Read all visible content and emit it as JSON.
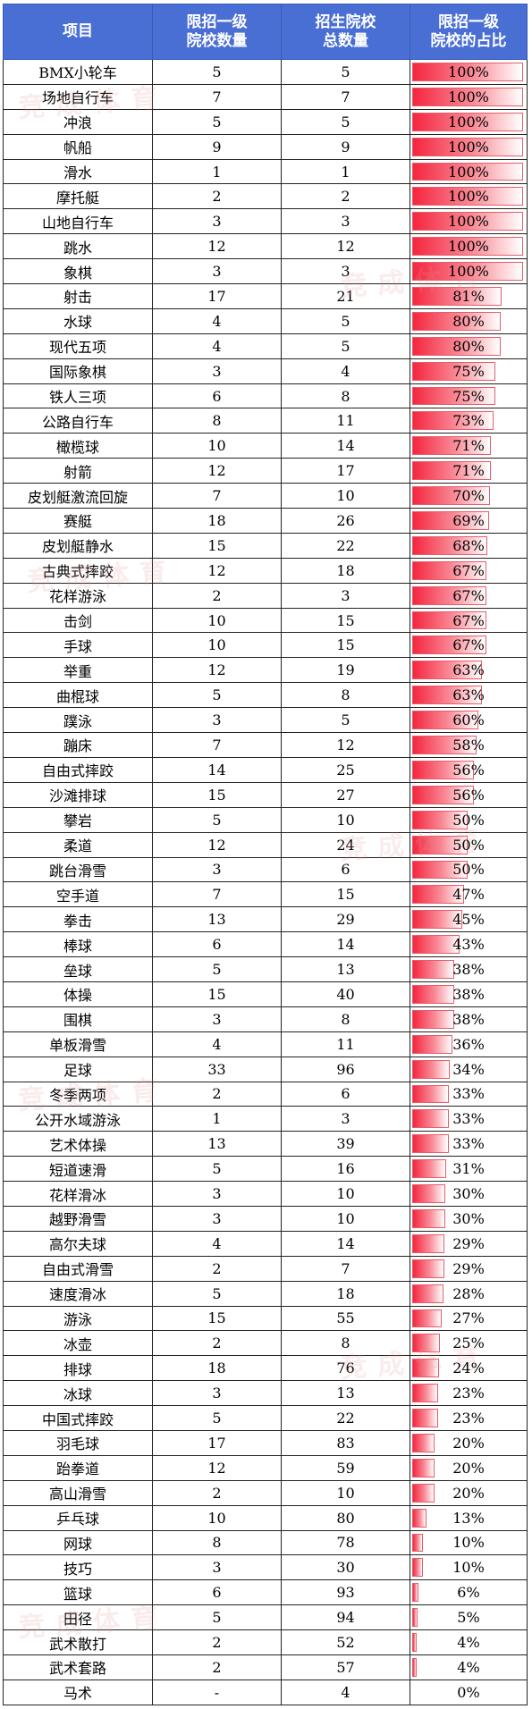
{
  "header": {
    "col1": "项目",
    "col2_line1": "限招一级",
    "col2_line2": "院校数量",
    "col3_line1": "招生院校",
    "col3_line2": "总数量",
    "col4_line1": "限招一级",
    "col4_line2": "院校的占比"
  },
  "watermark_text": "竞成体育",
  "rows": [
    {
      "name": "BMX小轮车",
      "limited": "5",
      "total": "5",
      "ratio": "100%",
      "fill": 1.0
    },
    {
      "name": "场地自行车",
      "limited": "7",
      "total": "7",
      "ratio": "100%",
      "fill": 1.0
    },
    {
      "name": "冲浪",
      "limited": "5",
      "total": "5",
      "ratio": "100%",
      "fill": 1.0
    },
    {
      "name": "帆船",
      "limited": "9",
      "total": "9",
      "ratio": "100%",
      "fill": 1.0
    },
    {
      "name": "滑水",
      "limited": "1",
      "total": "1",
      "ratio": "100%",
      "fill": 1.0
    },
    {
      "name": "摩托艇",
      "limited": "2",
      "total": "2",
      "ratio": "100%",
      "fill": 1.0
    },
    {
      "name": "山地自行车",
      "limited": "3",
      "total": "3",
      "ratio": "100%",
      "fill": 1.0
    },
    {
      "name": "跳水",
      "limited": "12",
      "total": "12",
      "ratio": "100%",
      "fill": 1.0
    },
    {
      "name": "象棋",
      "limited": "3",
      "total": "3",
      "ratio": "100%",
      "fill": 1.0
    },
    {
      "name": "射击",
      "limited": "17",
      "total": "21",
      "ratio": "81%",
      "fill": 0.81
    },
    {
      "name": "水球",
      "limited": "4",
      "total": "5",
      "ratio": "80%",
      "fill": 0.8
    },
    {
      "name": "现代五项",
      "limited": "4",
      "total": "5",
      "ratio": "80%",
      "fill": 0.8
    },
    {
      "name": "国际象棋",
      "limited": "3",
      "total": "4",
      "ratio": "75%",
      "fill": 0.75
    },
    {
      "name": "铁人三项",
      "limited": "6",
      "total": "8",
      "ratio": "75%",
      "fill": 0.75
    },
    {
      "name": "公路自行车",
      "limited": "8",
      "total": "11",
      "ratio": "73%",
      "fill": 0.73
    },
    {
      "name": "橄榄球",
      "limited": "10",
      "total": "14",
      "ratio": "71%",
      "fill": 0.71
    },
    {
      "name": "射箭",
      "limited": "12",
      "total": "17",
      "ratio": "71%",
      "fill": 0.71
    },
    {
      "name": "皮划艇激流回旋",
      "limited": "7",
      "total": "10",
      "ratio": "70%",
      "fill": 0.7
    },
    {
      "name": "赛艇",
      "limited": "18",
      "total": "26",
      "ratio": "69%",
      "fill": 0.69
    },
    {
      "name": "皮划艇静水",
      "limited": "15",
      "total": "22",
      "ratio": "68%",
      "fill": 0.68
    },
    {
      "name": "古典式摔跤",
      "limited": "12",
      "total": "18",
      "ratio": "67%",
      "fill": 0.67
    },
    {
      "name": "花样游泳",
      "limited": "2",
      "total": "3",
      "ratio": "67%",
      "fill": 0.67
    },
    {
      "name": "击剑",
      "limited": "10",
      "total": "15",
      "ratio": "67%",
      "fill": 0.67
    },
    {
      "name": "手球",
      "limited": "10",
      "total": "15",
      "ratio": "67%",
      "fill": 0.67
    },
    {
      "name": "举重",
      "limited": "12",
      "total": "19",
      "ratio": "63%",
      "fill": 0.63
    },
    {
      "name": "曲棍球",
      "limited": "5",
      "total": "8",
      "ratio": "63%",
      "fill": 0.63
    },
    {
      "name": "蹼泳",
      "limited": "3",
      "total": "5",
      "ratio": "60%",
      "fill": 0.6
    },
    {
      "name": "蹦床",
      "limited": "7",
      "total": "12",
      "ratio": "58%",
      "fill": 0.58
    },
    {
      "name": "自由式摔跤",
      "limited": "14",
      "total": "25",
      "ratio": "56%",
      "fill": 0.56
    },
    {
      "name": "沙滩排球",
      "limited": "15",
      "total": "27",
      "ratio": "56%",
      "fill": 0.56
    },
    {
      "name": "攀岩",
      "limited": "5",
      "total": "10",
      "ratio": "50%",
      "fill": 0.5
    },
    {
      "name": "柔道",
      "limited": "12",
      "total": "24",
      "ratio": "50%",
      "fill": 0.5
    },
    {
      "name": "跳台滑雪",
      "limited": "3",
      "total": "6",
      "ratio": "50%",
      "fill": 0.5
    },
    {
      "name": "空手道",
      "limited": "7",
      "total": "15",
      "ratio": "47%",
      "fill": 0.47
    },
    {
      "name": "拳击",
      "limited": "13",
      "total": "29",
      "ratio": "45%",
      "fill": 0.45
    },
    {
      "name": "棒球",
      "limited": "6",
      "total": "14",
      "ratio": "43%",
      "fill": 0.43
    },
    {
      "name": "垒球",
      "limited": "5",
      "total": "13",
      "ratio": "38%",
      "fill": 0.38
    },
    {
      "name": "体操",
      "limited": "15",
      "total": "40",
      "ratio": "38%",
      "fill": 0.38
    },
    {
      "name": "围棋",
      "limited": "3",
      "total": "8",
      "ratio": "38%",
      "fill": 0.38
    },
    {
      "name": "单板滑雪",
      "limited": "4",
      "total": "11",
      "ratio": "36%",
      "fill": 0.36
    },
    {
      "name": "足球",
      "limited": "33",
      "total": "96",
      "ratio": "34%",
      "fill": 0.34
    },
    {
      "name": "冬季两项",
      "limited": "2",
      "total": "6",
      "ratio": "33%",
      "fill": 0.33
    },
    {
      "name": "公开水域游泳",
      "limited": "1",
      "total": "3",
      "ratio": "33%",
      "fill": 0.33
    },
    {
      "name": "艺术体操",
      "limited": "13",
      "total": "39",
      "ratio": "33%",
      "fill": 0.33
    },
    {
      "name": "短道速滑",
      "limited": "5",
      "total": "16",
      "ratio": "31%",
      "fill": 0.31
    },
    {
      "name": "花样滑冰",
      "limited": "3",
      "total": "10",
      "ratio": "30%",
      "fill": 0.3
    },
    {
      "name": "越野滑雪",
      "limited": "3",
      "total": "10",
      "ratio": "30%",
      "fill": 0.3
    },
    {
      "name": "高尔夫球",
      "limited": "4",
      "total": "14",
      "ratio": "29%",
      "fill": 0.29
    },
    {
      "name": "自由式滑雪",
      "limited": "2",
      "total": "7",
      "ratio": "29%",
      "fill": 0.29
    },
    {
      "name": "速度滑冰",
      "limited": "5",
      "total": "18",
      "ratio": "28%",
      "fill": 0.28
    },
    {
      "name": "游泳",
      "limited": "15",
      "total": "55",
      "ratio": "27%",
      "fill": 0.27
    },
    {
      "name": "冰壶",
      "limited": "2",
      "total": "8",
      "ratio": "25%",
      "fill": 0.25
    },
    {
      "name": "排球",
      "limited": "18",
      "total": "76",
      "ratio": "24%",
      "fill": 0.24
    },
    {
      "name": "冰球",
      "limited": "3",
      "total": "13",
      "ratio": "23%",
      "fill": 0.23
    },
    {
      "name": "中国式摔跤",
      "limited": "5",
      "total": "22",
      "ratio": "23%",
      "fill": 0.23
    },
    {
      "name": "羽毛球",
      "limited": "17",
      "total": "83",
      "ratio": "20%",
      "fill": 0.2
    },
    {
      "name": "跆拳道",
      "limited": "12",
      "total": "59",
      "ratio": "20%",
      "fill": 0.2
    },
    {
      "name": "高山滑雪",
      "limited": "2",
      "total": "10",
      "ratio": "20%",
      "fill": 0.2
    },
    {
      "name": "乒乓球",
      "limited": "10",
      "total": "80",
      "ratio": "13%",
      "fill": 0.13
    },
    {
      "name": "网球",
      "limited": "8",
      "total": "78",
      "ratio": "10%",
      "fill": 0.1
    },
    {
      "name": "技巧",
      "limited": "3",
      "total": "30",
      "ratio": "10%",
      "fill": 0.1
    },
    {
      "name": "篮球",
      "limited": "6",
      "total": "93",
      "ratio": "6%",
      "fill": 0.06
    },
    {
      "name": "田径",
      "limited": "5",
      "total": "94",
      "ratio": "5%",
      "fill": 0.05
    },
    {
      "name": "武术散打",
      "limited": "2",
      "total": "52",
      "ratio": "4%",
      "fill": 0.04
    },
    {
      "name": "武术套路",
      "limited": "2",
      "total": "57",
      "ratio": "4%",
      "fill": 0.04
    },
    {
      "name": "马术",
      "limited": "-",
      "total": "4",
      "ratio": "0%",
      "fill": 0.0
    }
  ]
}
